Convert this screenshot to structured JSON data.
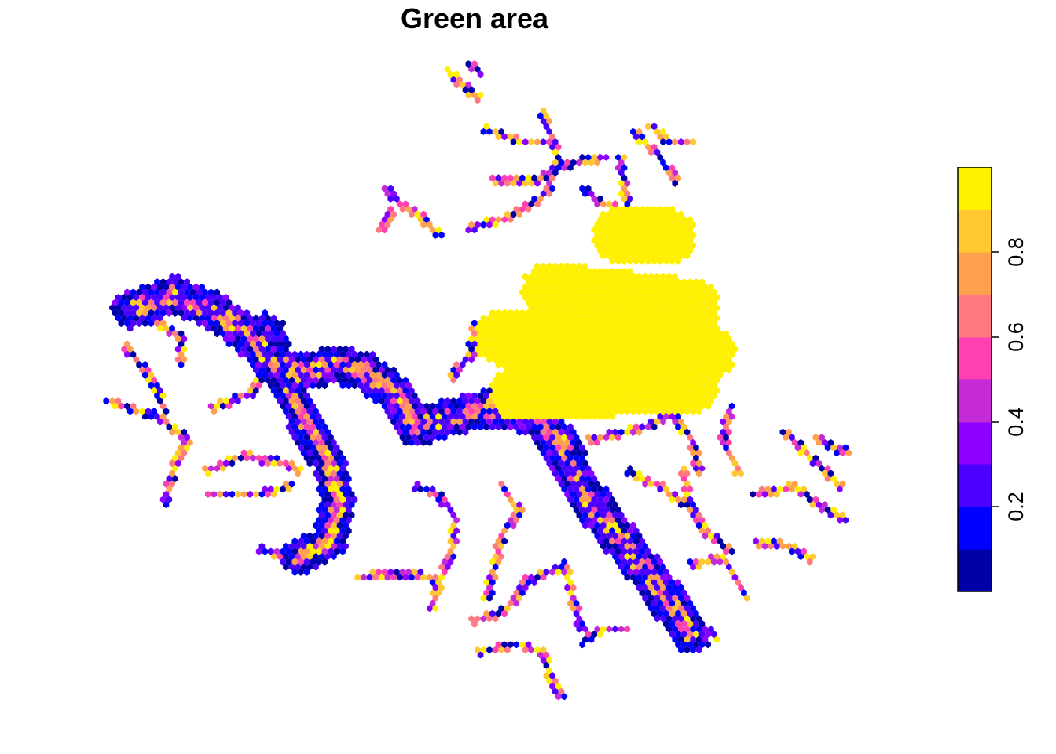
{
  "map": {
    "title": "Green area",
    "legend": {
      "type": "continuous",
      "range": [
        0,
        1
      ],
      "ticks": [
        0.2,
        0.4,
        0.6,
        0.8
      ],
      "tick_labels": [
        "0.2",
        "0.4",
        "0.6",
        "0.8"
      ],
      "colors": [
        "#0000A8",
        "#0000FF",
        "#4B00FF",
        "#8C00FF",
        "#C42AD6",
        "#FF40B0",
        "#FF7A80",
        "#FFA050",
        "#FFC830",
        "#FFF000"
      ],
      "placement": "right"
    },
    "palette_name": "plasma-like (blue to yellow)",
    "cell_shape": "hexagon"
  }
}
